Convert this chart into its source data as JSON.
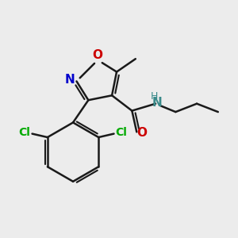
{
  "background_color": "#ececec",
  "bond_color": "#1a1a1a",
  "nitrogen_color": "#0000cc",
  "oxygen_color": "#cc0000",
  "chlorine_color": "#00aa00",
  "nh_color": "#3a8a8a",
  "figsize": [
    3.0,
    3.0
  ],
  "dpi": 100,
  "xlim": [
    0,
    10
  ],
  "ylim": [
    0,
    10
  ]
}
